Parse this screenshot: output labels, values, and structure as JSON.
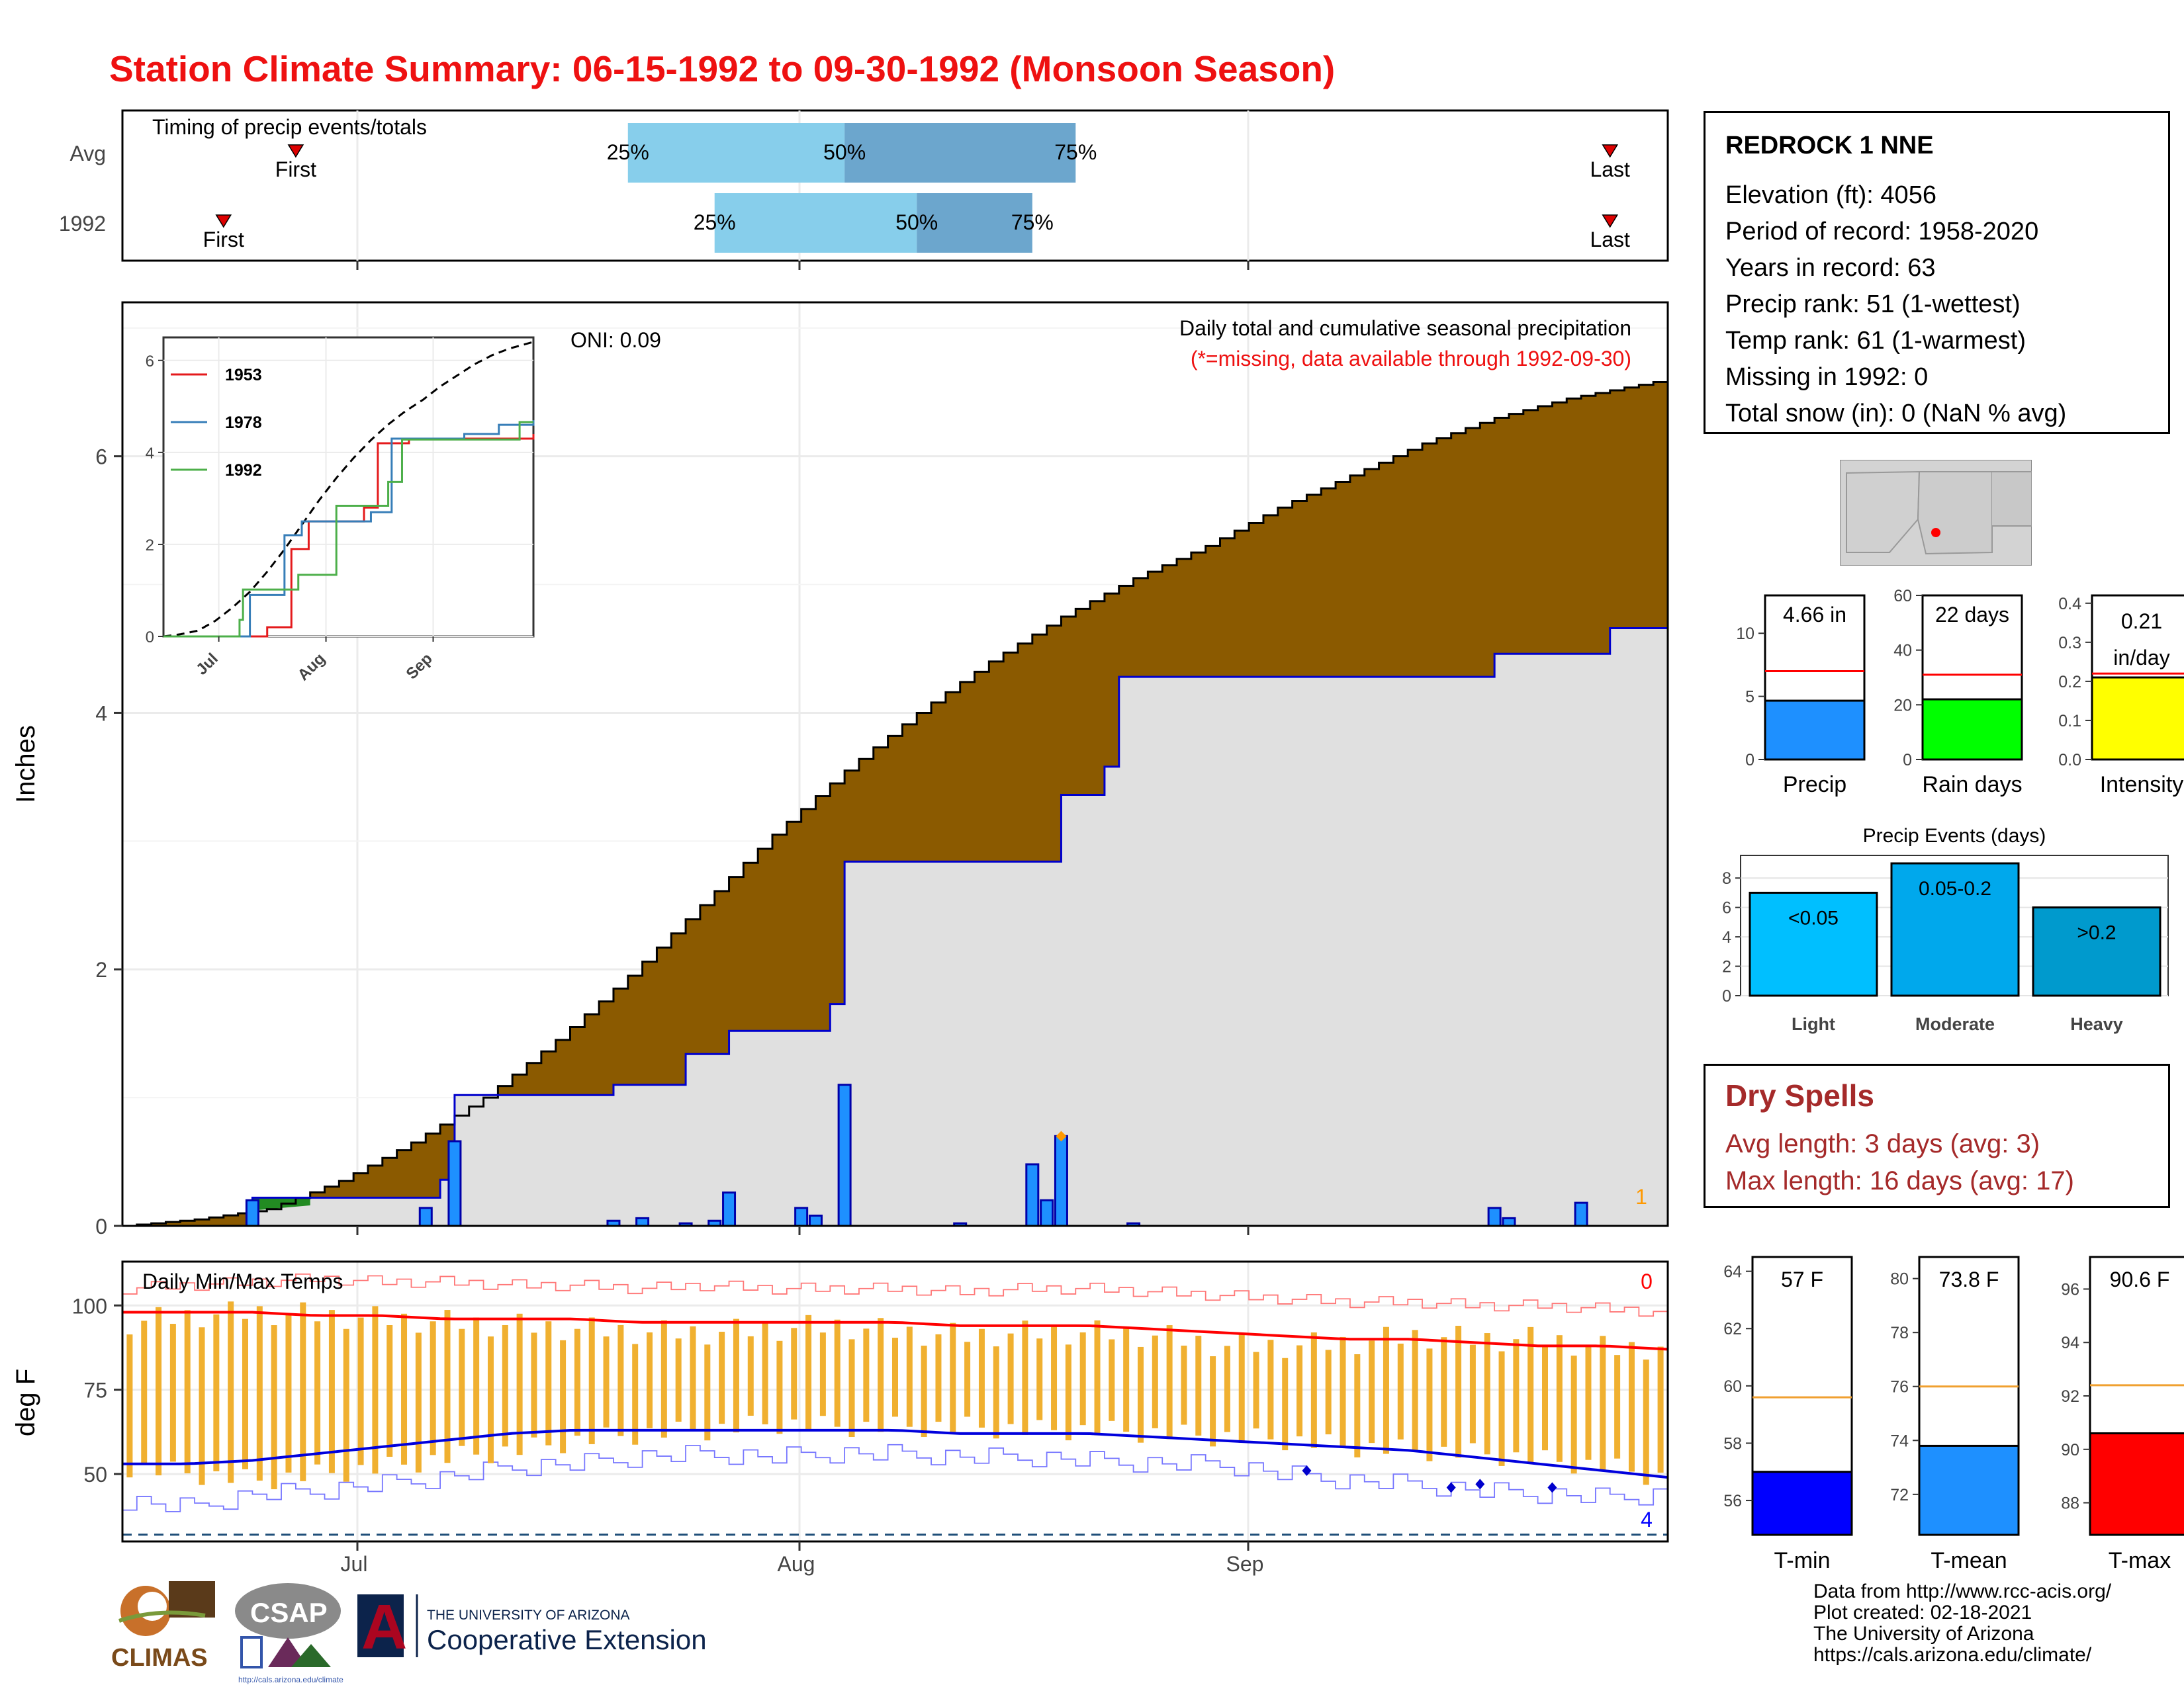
{
  "title": "Station Climate Summary: 06-15-1992 to 09-30-1992 (Monsoon Season)",
  "timing": {
    "label": "Timing of precip events/totals",
    "rows": [
      {
        "name": "Avg",
        "first_label": "First",
        "last_label": "Last",
        "p25": "25%",
        "p50": "50%",
        "p75": "75%"
      },
      {
        "name": "1992",
        "first_label": "First",
        "last_label": "Last",
        "p25": "25%",
        "p50": "50%",
        "p75": "75%"
      }
    ]
  },
  "main": {
    "ylabel": "Inches",
    "yticks": [
      "0",
      "2",
      "4",
      "6"
    ],
    "oni": "ONI: 0.09",
    "caption": "Daily total and cumulative seasonal precipitation",
    "missing_note": "(*=missing, data available through 1992-09-30)",
    "corner_count": "1"
  },
  "inset": {
    "yticks": [
      "0",
      "2",
      "4",
      "6"
    ],
    "xticks": [
      "Jul",
      "Aug",
      "Sep"
    ],
    "legend": [
      "1953",
      "1978",
      "1992"
    ],
    "colors": {
      "1953": "#e41a1c",
      "1978": "#377eb8",
      "1992": "#4daf4a"
    }
  },
  "temps": {
    "label": "Daily Min/Max Temps",
    "ylabel": "deg F",
    "yticks": [
      "50",
      "75",
      "100"
    ],
    "xticks": [
      "Jul",
      "Aug",
      "Sep"
    ],
    "max_count": "0",
    "min_count": "4"
  },
  "station": {
    "name": "REDROCK 1 NNE",
    "lines": [
      "Elevation (ft): 4056",
      "Period of record: 1958-2020",
      "Years in record: 63",
      "Precip rank: 51 (1-wettest)",
      "Temp rank: 61 (1-warmest)",
      "Missing in 1992: 0",
      "Total snow (in): 0 (NaN % avg)"
    ]
  },
  "small_bars": [
    {
      "label": "Precip",
      "value_text": "4.66 in",
      "yticks": [
        "0",
        "5",
        "10"
      ],
      "color": "#1e90ff"
    },
    {
      "label": "Rain days",
      "value_text": "22 days",
      "yticks": [
        "0",
        "20",
        "40",
        "60"
      ],
      "color": "#00ff00"
    },
    {
      "label": "Intensity",
      "value_text": "0.21 in/day",
      "value_line1": "0.21",
      "value_line2": "in/day",
      "yticks": [
        "0.0",
        "0.1",
        "0.2",
        "0.3",
        "0.4"
      ],
      "color": "#ffff00"
    }
  ],
  "events": {
    "title": "Precip Events (days)",
    "yticks": [
      "0",
      "2",
      "4",
      "6",
      "8"
    ],
    "bars": [
      {
        "label": "Light",
        "text": "<0.05"
      },
      {
        "label": "Moderate",
        "text": "0.05-0.2"
      },
      {
        "label": "Heavy",
        "text": ">0.2"
      }
    ]
  },
  "dry_spells": {
    "title": "Dry Spells",
    "avg": "Avg length: 3 days (avg: 3)",
    "max": "Max length: 16 days (avg: 17)"
  },
  "temp_bars": [
    {
      "label": "T-min",
      "value_text": "57 F",
      "yticks": [
        "56",
        "58",
        "60",
        "62",
        "64"
      ],
      "color": "#0000ff"
    },
    {
      "label": "T-mean",
      "value_text": "73.8 F",
      "yticks": [
        "72",
        "74",
        "76",
        "78",
        "80"
      ],
      "color": "#1e90ff"
    },
    {
      "label": "T-max",
      "value_text": "90.6 F",
      "yticks": [
        "88",
        "90",
        "92",
        "94",
        "96"
      ],
      "color": "#ff0000"
    }
  ],
  "credits": [
    "Data from http://www.rcc-acis.org/",
    "Plot created: 02-18-2021",
    "The University of Arizona",
    "https://cals.arizona.edu/climate/"
  ],
  "logos": {
    "climas": "CLIMAS",
    "csap": "CSAP",
    "csap_url": "http://cals.arizona.edu/climate",
    "ua_top": "THE UNIVERSITY OF ARIZONA",
    "ua_bottom": "Cooperative Extension",
    "ua_letter": "A"
  },
  "chart_data": [
    {
      "type": "bar",
      "name": "timing",
      "categories": [
        "Avg",
        "1992"
      ],
      "first_day": [
        "2021-06-27",
        "2021-06-22"
      ],
      "last_day": [
        "2021-09-26",
        "2021-09-26"
      ],
      "p25": [
        "2021-07-20",
        "2021-07-26"
      ],
      "p50": [
        "2021-08-04",
        "2021-08-09"
      ],
      "p75": [
        "2021-08-20",
        "2021-08-17"
      ]
    },
    {
      "type": "area",
      "name": "cumulative-precip",
      "ylim": [
        0,
        7.2
      ],
      "avg_cumulative": {
        "x": [
          "06-15",
          "06-20",
          "06-25",
          "06-30",
          "07-05",
          "07-10",
          "07-15",
          "07-20",
          "07-25",
          "07-30",
          "08-04",
          "08-09",
          "08-14",
          "08-19",
          "08-24",
          "08-29",
          "09-03",
          "09-08",
          "09-13",
          "09-18",
          "09-23",
          "09-30"
        ],
        "y": [
          0,
          0.05,
          0.13,
          0.35,
          0.65,
          1.0,
          1.45,
          1.95,
          2.5,
          3.05,
          3.55,
          4.0,
          4.4,
          4.75,
          5.05,
          5.3,
          5.6,
          5.85,
          6.1,
          6.3,
          6.45,
          6.6
        ]
      },
      "y1992_cumulative": {
        "x": [
          "06-15",
          "06-24",
          "07-07",
          "07-08",
          "07-12",
          "07-19",
          "07-24",
          "07-27",
          "08-03",
          "08-04",
          "08-19",
          "08-22",
          "08-23",
          "08-30",
          "09-18",
          "09-26",
          "09-30"
        ],
        "y": [
          0,
          0.22,
          0.36,
          1.02,
          1.02,
          1.1,
          1.34,
          1.52,
          1.73,
          2.84,
          3.36,
          3.58,
          4.28,
          4.28,
          4.46,
          4.66,
          4.66
        ]
      },
      "daily": {
        "x": [
          "06-24",
          "07-06",
          "07-08",
          "07-19",
          "07-21",
          "07-24",
          "07-26",
          "07-27",
          "08-01",
          "08-02",
          "08-04",
          "08-12",
          "08-17",
          "08-18",
          "08-19",
          "08-24",
          "09-18",
          "09-19",
          "09-24"
        ],
        "y": [
          0.2,
          0.14,
          0.66,
          0.04,
          0.06,
          0.02,
          0.04,
          0.26,
          0.14,
          0.08,
          1.1,
          0.02,
          0.48,
          0.2,
          0.7,
          0.02,
          0.14,
          0.06,
          0.18
        ]
      }
    },
    {
      "type": "line",
      "name": "inset-cumulative",
      "ylim": [
        0,
        6.5
      ],
      "series": [
        {
          "name": "1953",
          "x": [
            "06-15",
            "07-15",
            "07-22",
            "07-27",
            "08-12",
            "08-16",
            "08-25",
            "09-30"
          ],
          "y": [
            0,
            0.2,
            1.9,
            2.5,
            2.8,
            4.2,
            4.3,
            4.4
          ]
        },
        {
          "name": "1978",
          "x": [
            "06-15",
            "07-10",
            "07-20",
            "07-25",
            "08-14",
            "08-20",
            "09-10",
            "09-20",
            "09-30"
          ],
          "y": [
            0,
            0.9,
            2.2,
            2.5,
            2.7,
            4.3,
            4.4,
            4.6,
            4.7
          ]
        },
        {
          "name": "1992",
          "x": [
            "06-15",
            "07-07",
            "07-08",
            "07-24",
            "08-04",
            "08-19",
            "08-23",
            "09-26",
            "09-30"
          ],
          "y": [
            0,
            0.36,
            1.02,
            1.34,
            2.84,
            3.36,
            4.28,
            4.66,
            4.66
          ]
        }
      ]
    },
    {
      "type": "bar",
      "name": "small-bars",
      "categories": [
        "Precip",
        "Rain days",
        "Intensity"
      ],
      "values": [
        4.66,
        22,
        0.21
      ],
      "averages": [
        7,
        31,
        0.22
      ],
      "ylims": [
        [
          0,
          13
        ],
        [
          0,
          60
        ],
        [
          0,
          0.42
        ]
      ]
    },
    {
      "type": "bar",
      "name": "precip-events",
      "categories": [
        "Light",
        "Moderate",
        "Heavy"
      ],
      "values": [
        7,
        9,
        6
      ],
      "ylim": [
        0,
        9
      ]
    },
    {
      "type": "line",
      "name": "daily-temps",
      "ylim": [
        30,
        113
      ],
      "min_bar": [
        52,
        50,
        48,
        50,
        52,
        55,
        57,
        60,
        62,
        63,
        65,
        64,
        64,
        64,
        63,
        63,
        62,
        61,
        60,
        58,
        57,
        56,
        54,
        52,
        48
      ],
      "max_bar": [
        95,
        97,
        98,
        97,
        96,
        95,
        94,
        93,
        92,
        92,
        93,
        94,
        92,
        91,
        92,
        92,
        91,
        88,
        88,
        89,
        91,
        90,
        90,
        87,
        88
      ],
      "avg_max": [
        98,
        98,
        98,
        97,
        97,
        96,
        96,
        96,
        95,
        95,
        95,
        95,
        95,
        94,
        94,
        94,
        93,
        92,
        91,
        90,
        90,
        89,
        88,
        88,
        87
      ],
      "avg_min": [
        53,
        53,
        54,
        56,
        58,
        60,
        62,
        63,
        63,
        63,
        63,
        63,
        63,
        62,
        62,
        62,
        61,
        60,
        59,
        58,
        57,
        55,
        53,
        51,
        49
      ],
      "record_max": [
        105,
        106,
        107,
        108,
        107,
        107,
        106,
        106,
        105,
        106,
        105,
        105,
        105,
        104,
        105,
        105,
        104,
        103,
        102,
        101,
        101,
        100,
        100,
        99,
        98
      ],
      "record_min": [
        42,
        40,
        44,
        45,
        47,
        49,
        52,
        53,
        55,
        56,
        55,
        56,
        56,
        55,
        55,
        54,
        53,
        53,
        50,
        48,
        47,
        45,
        44,
        43,
        44
      ],
      "freeze_line": 32
    },
    {
      "type": "bar",
      "name": "temp-bars",
      "categories": [
        "T-min",
        "T-mean",
        "T-max"
      ],
      "values": [
        57,
        73.8,
        90.6
      ],
      "averages": [
        59.6,
        76.0,
        92.4
      ],
      "ylims": [
        [
          54.8,
          64.5
        ],
        [
          70.5,
          80.8
        ],
        [
          86.8,
          97.2
        ]
      ]
    }
  ]
}
